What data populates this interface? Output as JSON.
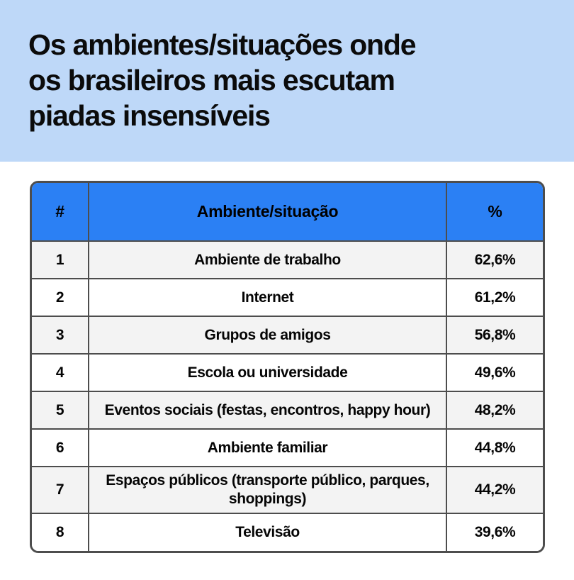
{
  "header": {
    "background": "#BED8F8",
    "title_line1": "Os ambientes/situações onde",
    "title_line2": "os brasileiros mais escutam",
    "title_line3": "piadas insensíveis"
  },
  "table": {
    "header_background": "#2B80F4",
    "border_color": "#4D4D4D",
    "alt_row_background": "#F3F3F3",
    "columns": {
      "rank": "#",
      "ambiente": "Ambiente/situação",
      "percent": "%"
    },
    "rows": [
      {
        "rank": "1",
        "label": "Ambiente de trabalho",
        "value": "62,6%"
      },
      {
        "rank": "2",
        "label": "Internet",
        "value": "61,2%"
      },
      {
        "rank": "3",
        "label": "Grupos de amigos",
        "value": "56,8%"
      },
      {
        "rank": "4",
        "label": "Escola ou universidade",
        "value": "49,6%"
      },
      {
        "rank": "5",
        "label": "Eventos sociais (festas, encontros, happy hour)",
        "value": "48,2%"
      },
      {
        "rank": "6",
        "label": "Ambiente familiar",
        "value": "44,8%"
      },
      {
        "rank": "7",
        "label": "Espaços públicos (transporte público, parques, shoppings)",
        "value": "44,2%"
      },
      {
        "rank": "8",
        "label": "Televisão",
        "value": "39,6%"
      }
    ]
  },
  "chart_data": {
    "type": "table",
    "title": "Os ambientes/situações onde os brasileiros mais escutam piadas insensíveis",
    "columns": [
      "#",
      "Ambiente/situação",
      "%"
    ],
    "categories": [
      "Ambiente de trabalho",
      "Internet",
      "Grupos de amigos",
      "Escola ou universidade",
      "Eventos sociais (festas, encontros, happy hour)",
      "Ambiente familiar",
      "Espaços públicos (transporte público, parques, shoppings)",
      "Televisão"
    ],
    "values": [
      62.6,
      61.2,
      56.8,
      49.6,
      48.2,
      44.8,
      44.2,
      39.6
    ],
    "value_labels": [
      "62,6%",
      "61,2%",
      "56,8%",
      "49,6%",
      "48,2%",
      "44,8%",
      "44,2%",
      "39,6%"
    ],
    "layout": {
      "sorted": "descending",
      "header_color": "#2B80F4",
      "zebra_rows": true
    }
  }
}
